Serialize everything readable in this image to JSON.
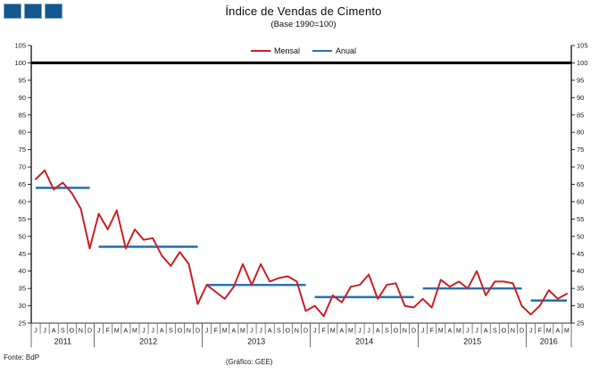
{
  "colors": {
    "mensal": "#CD2328",
    "anual": "#2E75B6",
    "reference": "#000000",
    "axis": "#333333",
    "tick": "#666666",
    "logo_fill": "#13588F",
    "logo_border": "#7FA5C5"
  },
  "chart_data": {
    "type": "line",
    "title": "Índice de Vendas de Cimento",
    "subtitle": "(Base 1990=100)",
    "source": "Fonte: BdP",
    "credit": "(Gráfico: GEE)",
    "series_labels": {
      "mensal": "Mensal",
      "anual": "Anual"
    },
    "ylim": [
      25,
      105
    ],
    "ytick_step": 5,
    "reference_line": 100,
    "legend_position": "top-center",
    "grid": false,
    "years": [
      {
        "year": "2011",
        "months": [
          "J",
          "J",
          "A",
          "S",
          "O",
          "N",
          "D"
        ],
        "mensal": [
          66.5,
          69,
          63.5,
          65.5,
          62.5,
          58,
          46.5
        ],
        "anual": 64
      },
      {
        "year": "2012",
        "months": [
          "J",
          "F",
          "M",
          "A",
          "M",
          "J",
          "J",
          "A",
          "S",
          "O",
          "N",
          "D"
        ],
        "mensal": [
          56.5,
          52,
          57.5,
          46.5,
          52,
          49,
          49.5,
          44.5,
          41.5,
          45.5,
          42,
          30.5
        ],
        "anual": 47
      },
      {
        "year": "2013",
        "months": [
          "J",
          "F",
          "M",
          "A",
          "M",
          "J",
          "J",
          "A",
          "S",
          "O",
          "N",
          "D"
        ],
        "mensal": [
          36,
          34,
          32,
          35.5,
          42,
          36,
          42,
          37,
          38,
          38.5,
          37,
          28.5
        ],
        "anual": 36
      },
      {
        "year": "2014",
        "months": [
          "J",
          "F",
          "M",
          "A",
          "M",
          "J",
          "J",
          "A",
          "S",
          "O",
          "N",
          "D"
        ],
        "mensal": [
          30,
          27,
          33,
          31,
          35.5,
          36,
          39,
          32,
          36,
          36.5,
          30,
          29.5
        ],
        "anual": 32.5
      },
      {
        "year": "2015",
        "months": [
          "J",
          "F",
          "M",
          "A",
          "M",
          "J",
          "J",
          "A",
          "S",
          "O",
          "N",
          "D"
        ],
        "mensal": [
          32,
          29.5,
          37.5,
          35.5,
          37,
          35,
          40,
          33,
          37,
          37,
          36.5,
          30
        ],
        "anual": 35
      },
      {
        "year": "2016",
        "months": [
          "J",
          "F",
          "M",
          "A",
          "M"
        ],
        "mensal": [
          27.5,
          30,
          34.5,
          32,
          33.5
        ],
        "anual": 31.5
      }
    ]
  }
}
